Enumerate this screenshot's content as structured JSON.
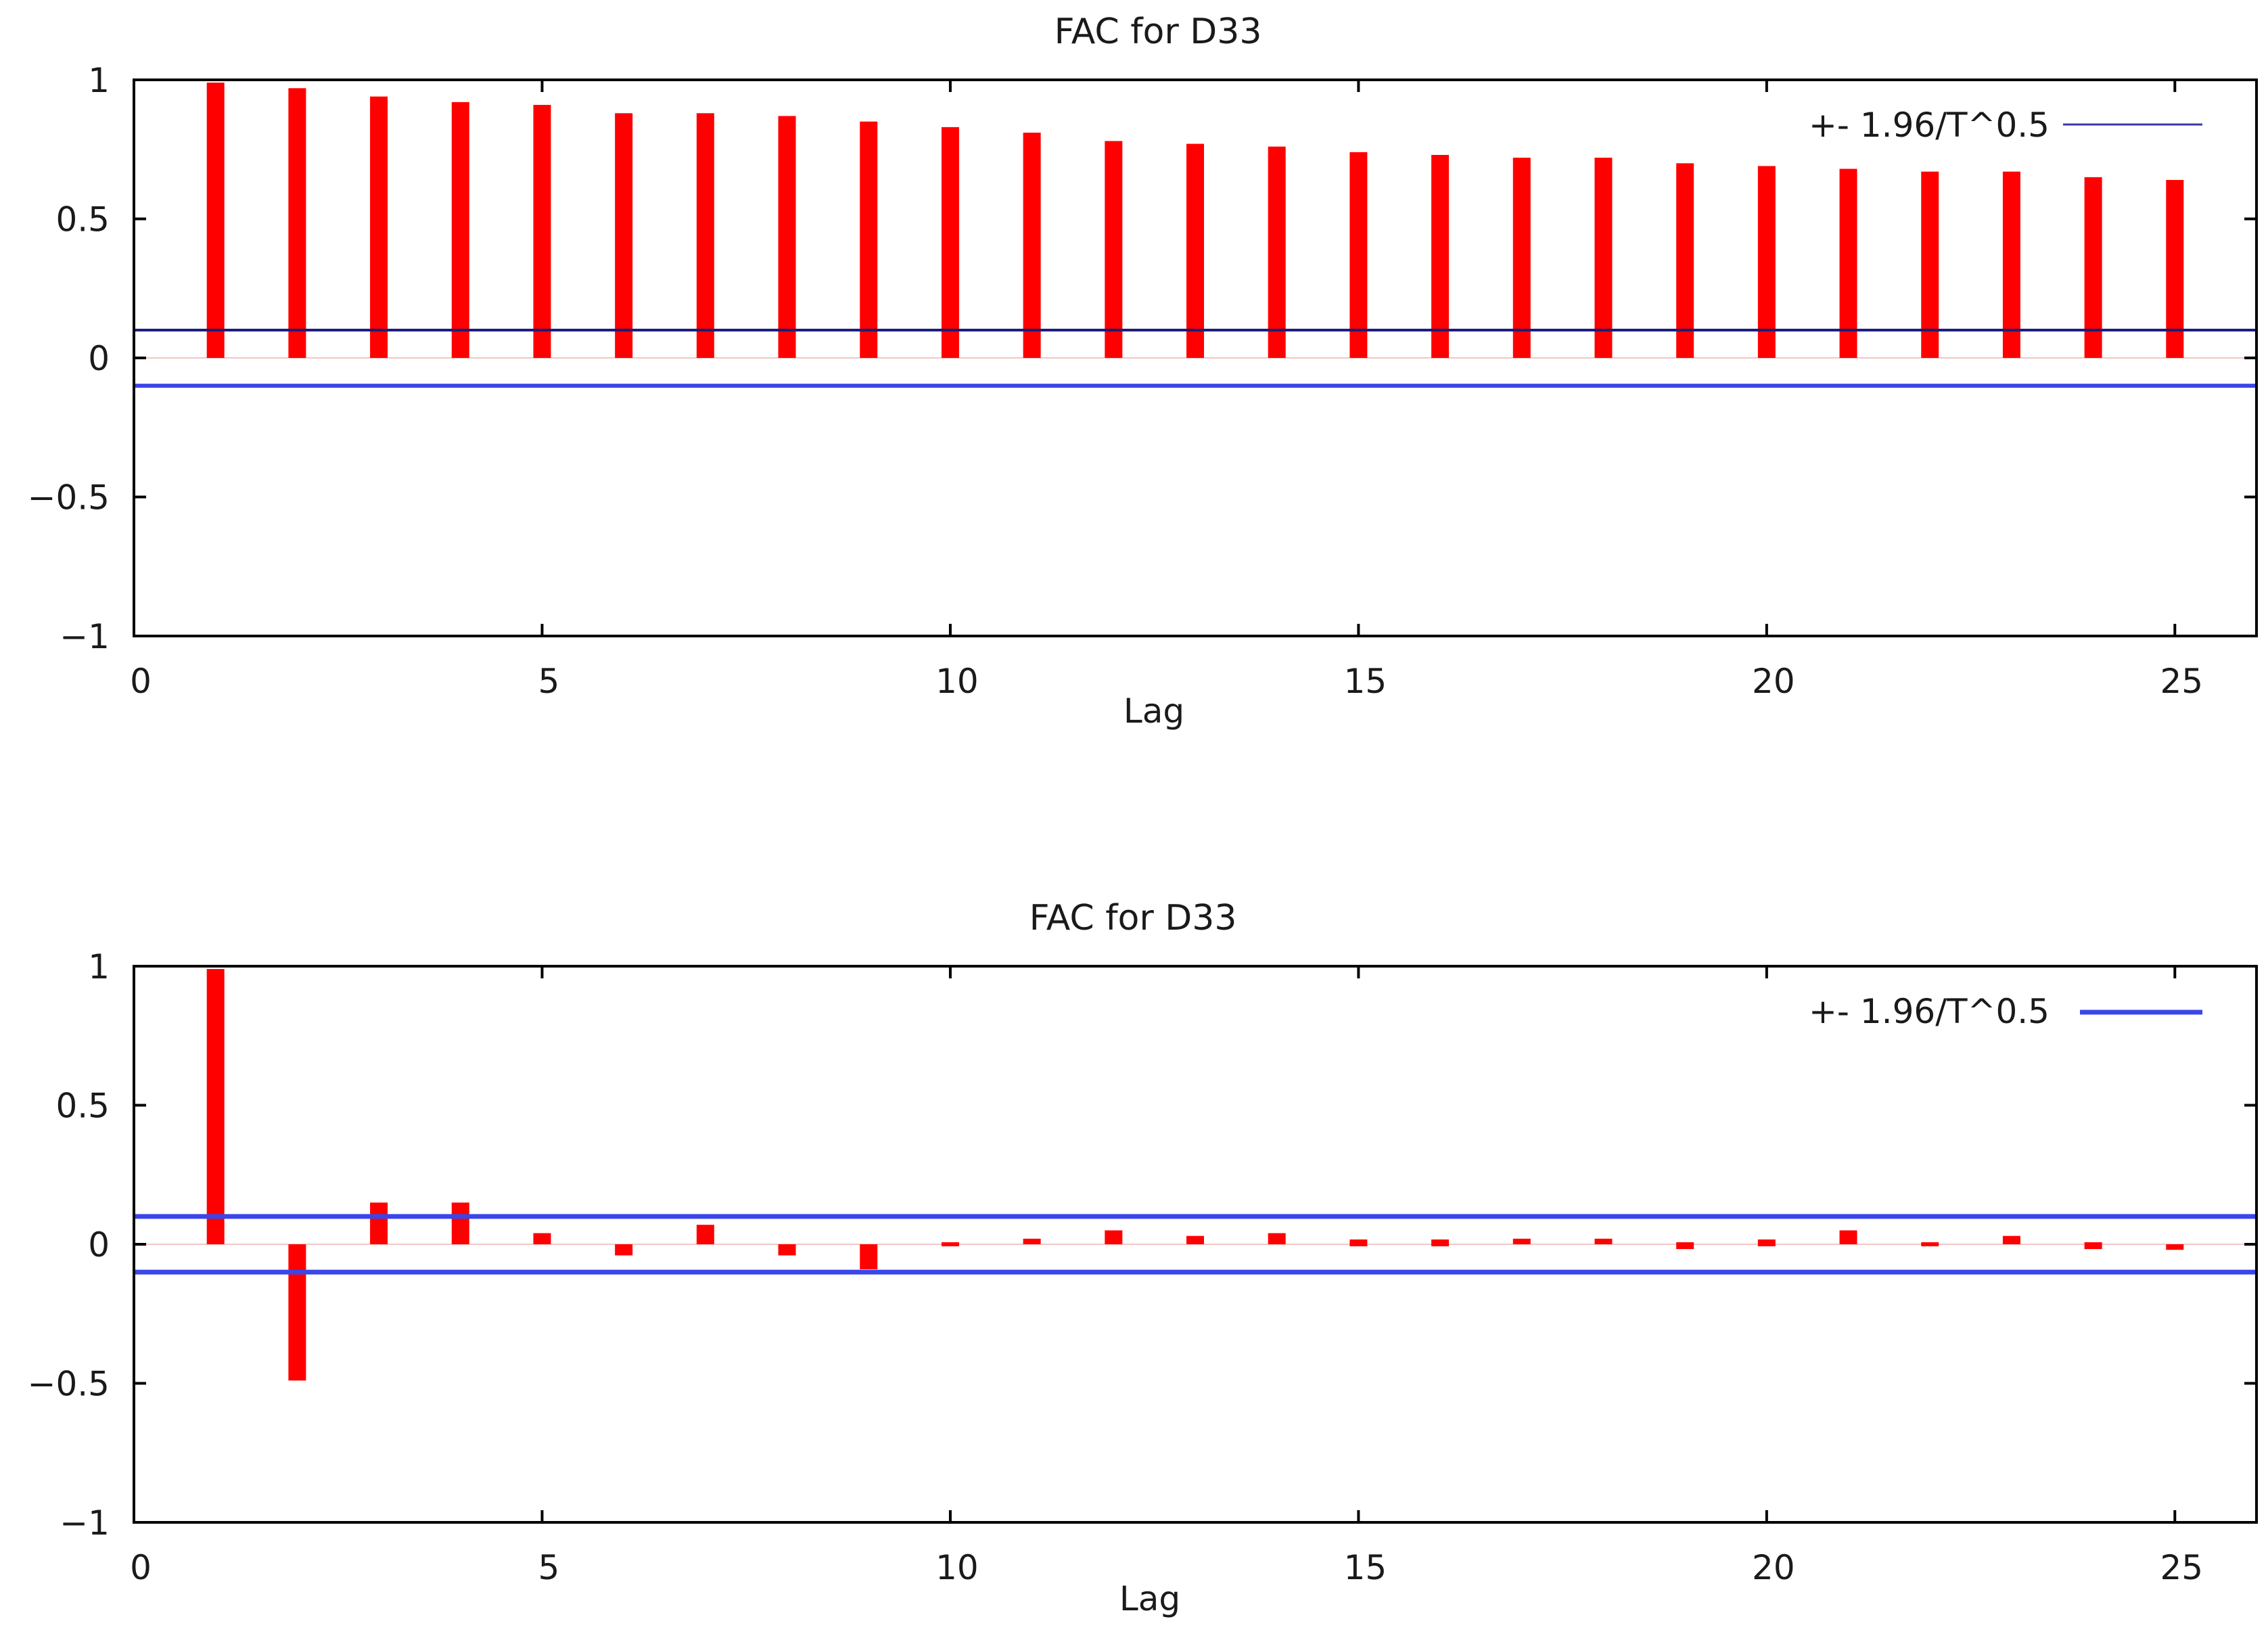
{
  "chart_data": [
    {
      "type": "bar",
      "title": "FAC for D33",
      "xlabel": "Lag",
      "ylabel": "",
      "xlim": [
        0,
        26
      ],
      "ylim": [
        -1,
        1
      ],
      "x_ticks": [
        "0",
        "5",
        "10",
        "15",
        "20",
        "25"
      ],
      "y_ticks": [
        "1",
        "0.5",
        "0",
        "−0.5",
        "−1"
      ],
      "legend": {
        "label": "+- 1.96/T^0.5",
        "placement": "top-right"
      },
      "confidence_band": 0.1,
      "grid": false,
      "series": [
        {
          "x": [
            1,
            2,
            3,
            4,
            5,
            6,
            7,
            8,
            9,
            10,
            11,
            12,
            13,
            14,
            15,
            16,
            17,
            18,
            19,
            20,
            21,
            22,
            23,
            24,
            25
          ],
          "values": [
            0.99,
            0.97,
            0.94,
            0.92,
            0.91,
            0.88,
            0.88,
            0.87,
            0.85,
            0.83,
            0.81,
            0.78,
            0.77,
            0.76,
            0.74,
            0.73,
            0.72,
            0.72,
            0.7,
            0.69,
            0.68,
            0.67,
            0.67,
            0.65,
            0.64
          ]
        }
      ],
      "colors": {
        "bars": "#ff0000",
        "band_upper": "#1a1a7a",
        "band_lower": "#3a46e8",
        "legend_line": "#3a3aa0",
        "axis": "#000000"
      }
    },
    {
      "type": "bar",
      "title": "FAC for D33",
      "xlabel": "Lag",
      "ylabel": "",
      "xlim": [
        0,
        26
      ],
      "ylim": [
        -1,
        1
      ],
      "x_ticks": [
        "0",
        "5",
        "10",
        "15",
        "20",
        "25"
      ],
      "y_ticks": [
        "1",
        "0.5",
        "0",
        "−0.5",
        "−1"
      ],
      "legend": {
        "label": "+- 1.96/T^0.5",
        "placement": "top-right"
      },
      "confidence_band": 0.1,
      "grid": false,
      "series": [
        {
          "x": [
            1,
            2,
            3,
            4,
            5,
            6,
            7,
            8,
            9,
            10,
            11,
            12,
            13,
            14,
            15,
            16,
            17,
            18,
            19,
            20,
            21,
            22,
            23,
            24,
            25
          ],
          "values": [
            0.99,
            -0.49,
            0.15,
            0.15,
            0.04,
            -0.04,
            0.07,
            -0.04,
            -0.09,
            0.0,
            0.02,
            0.05,
            0.03,
            0.04,
            0.01,
            0.01,
            0.02,
            0.02,
            -0.01,
            0.01,
            0.05,
            0.0,
            0.03,
            -0.01,
            -0.02
          ]
        }
      ],
      "colors": {
        "bars": "#ff0000",
        "band_upper": "#3a46e8",
        "band_lower": "#3a46e8",
        "legend_line": "#3a46e8",
        "axis": "#000000"
      }
    }
  ]
}
